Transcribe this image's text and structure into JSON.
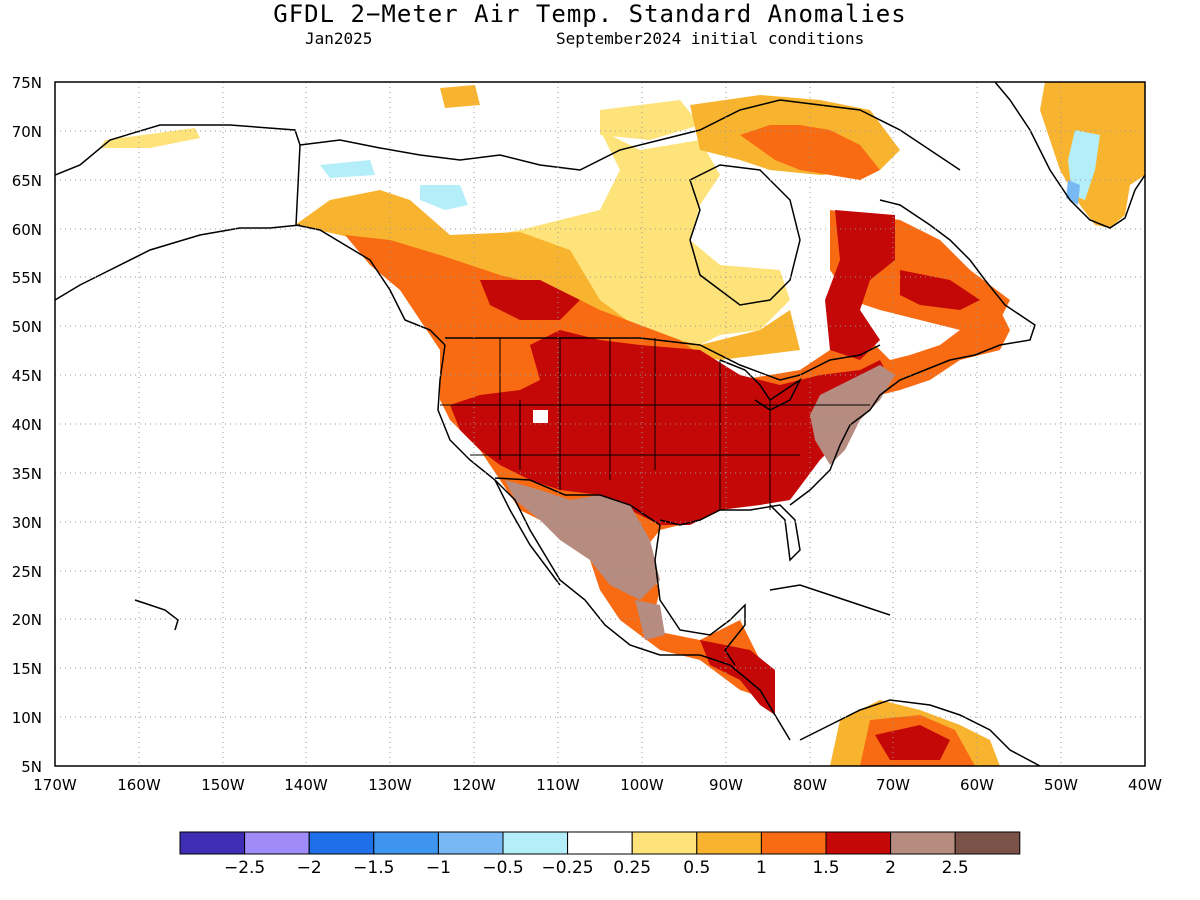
{
  "header": {
    "title": "GFDL 2−Meter Air Temp. Standard Anomalies",
    "valid_month": "Jan2025",
    "init_conditions": "September2024 initial conditions"
  },
  "map": {
    "lat_labels": [
      "75N",
      "70N",
      "65N",
      "60N",
      "55N",
      "50N",
      "45N",
      "40N",
      "35N",
      "30N",
      "25N",
      "20N",
      "15N",
      "10N",
      "5N"
    ],
    "lon_labels": [
      "170W",
      "160W",
      "150W",
      "140W",
      "130W",
      "120W",
      "110W",
      "100W",
      "90W",
      "80W",
      "70W",
      "60W",
      "50W",
      "40W"
    ],
    "lat_range": [
      5,
      75
    ],
    "lon_range": [
      -170,
      -40
    ],
    "gridlines": "dotted"
  },
  "colorbar": {
    "colors": [
      "#3f2db5",
      "#a08cf8",
      "#1f6fe8",
      "#3d95f0",
      "#78b9f5",
      "#b4eef8",
      "#ffffff",
      "#fde37a",
      "#f9b42f",
      "#f86b12",
      "#c40808",
      "#b68b80",
      "#7b5247"
    ],
    "labels": [
      "−2.5",
      "−2",
      "−1.5",
      "−1",
      "−0.5",
      "−0.25",
      "0.25",
      "0.5",
      "1",
      "1.5",
      "2",
      "2.5"
    ]
  }
}
